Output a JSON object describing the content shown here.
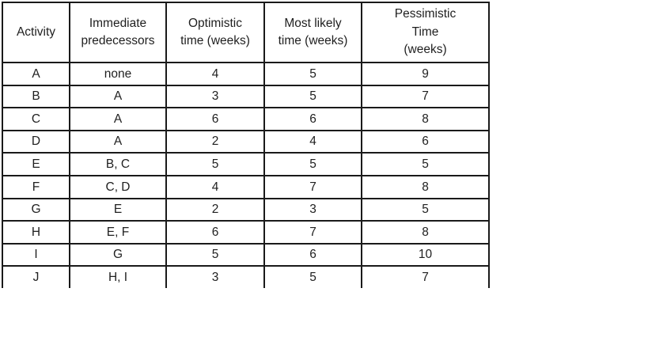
{
  "table": {
    "columns": [
      {
        "label": "Activity"
      },
      {
        "label": "Immediate\npredecessors"
      },
      {
        "label": "Optimistic\ntime (weeks)"
      },
      {
        "label": "Most likely\ntime (weeks)"
      },
      {
        "label": "Pessimistic\nTime\n(weeks)"
      }
    ],
    "rows": [
      [
        "A",
        "none",
        "4",
        "5",
        "9"
      ],
      [
        "B",
        "A",
        "3",
        "5",
        "7"
      ],
      [
        "C",
        "A",
        "6",
        "6",
        "8"
      ],
      [
        "D",
        "A",
        "2",
        "4",
        "6"
      ],
      [
        "E",
        "B, C",
        "5",
        "5",
        "5"
      ],
      [
        "F",
        "C, D",
        "4",
        "7",
        "8"
      ],
      [
        "G",
        "E",
        "2",
        "3",
        "5"
      ],
      [
        "H",
        "E, F",
        "6",
        "7",
        "8"
      ],
      [
        "I",
        "G",
        "5",
        "6",
        "10"
      ],
      [
        "J",
        "H, I",
        "3",
        "5",
        "7"
      ]
    ]
  },
  "colors": {
    "background": "#ffffff",
    "border": "#1a1a1a",
    "text": "#1f1f1f"
  }
}
